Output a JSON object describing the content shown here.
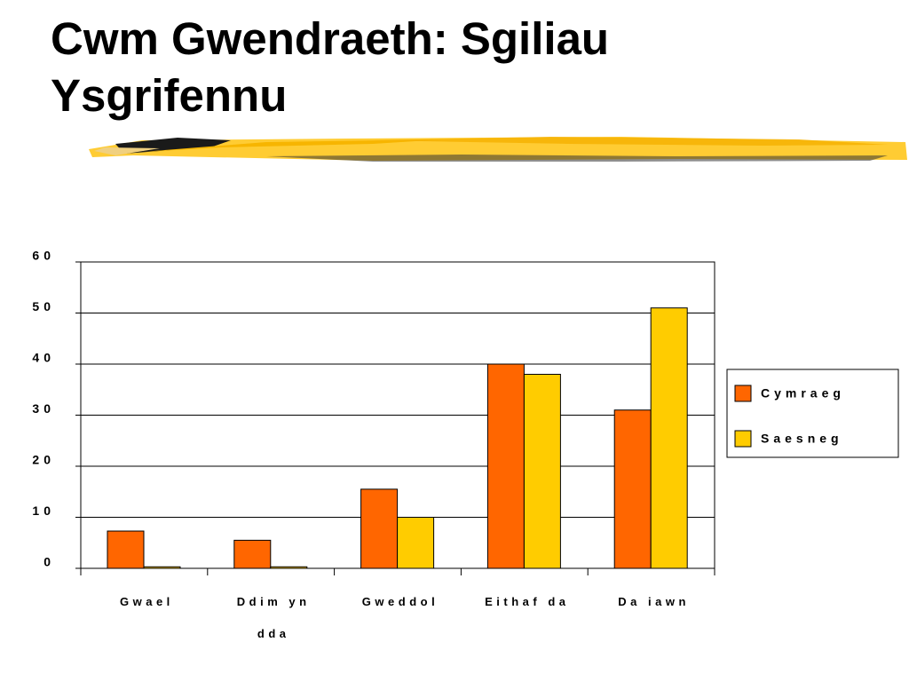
{
  "chart_data": {
    "type": "bar",
    "title": "Cwm Gwendraeth: Sgiliau Ysgrifennu",
    "categories": [
      "Gwael",
      "Ddim yn dda",
      "Gweddol",
      "Eithaf da",
      "Da iawn"
    ],
    "series": [
      {
        "name": "Cymraeg",
        "color": "#ff6600",
        "values": [
          7.3,
          5.5,
          15.5,
          40,
          31
        ]
      },
      {
        "name": "Saesneg",
        "color": "#ffcc00",
        "values": [
          0.3,
          0.3,
          10,
          38,
          51
        ]
      }
    ],
    "ylim": [
      0,
      60
    ],
    "yticks": [
      0,
      10,
      20,
      30,
      40,
      50,
      60
    ],
    "grid": true,
    "legend": "right"
  }
}
